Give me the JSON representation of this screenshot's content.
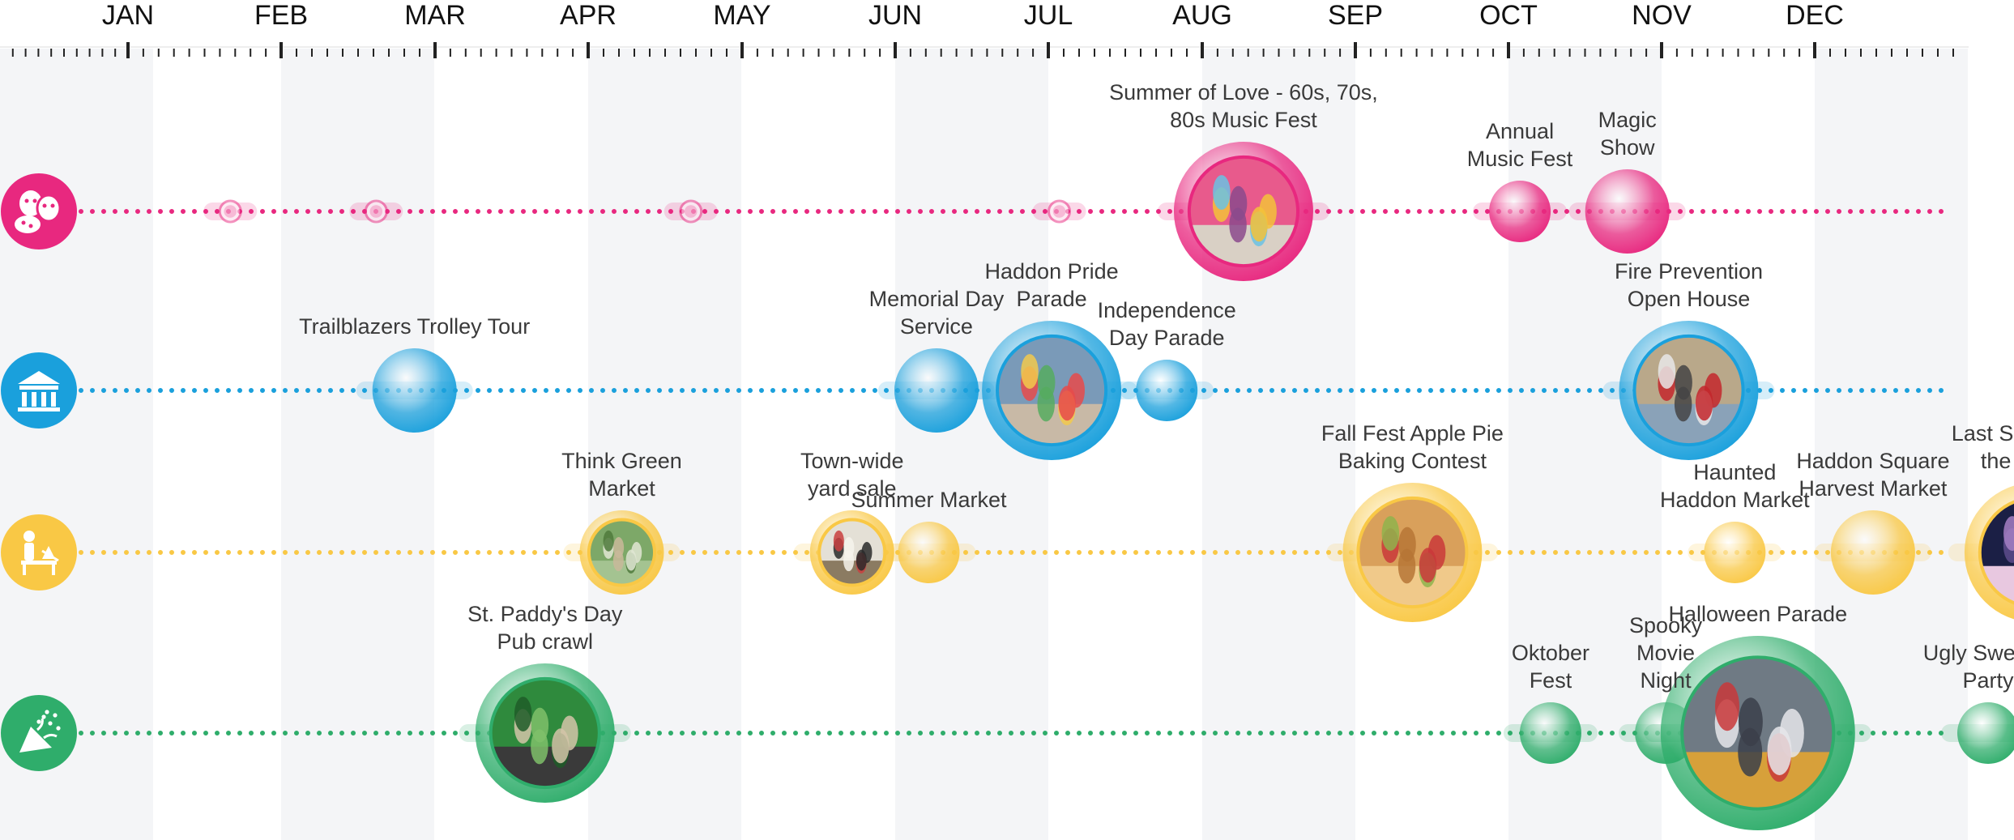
{
  "months": [
    "JAN",
    "FEB",
    "MAR",
    "APR",
    "MAY",
    "JUN",
    "JUL",
    "AUG",
    "SEP",
    "OCT",
    "NOV",
    "DEC"
  ],
  "colors": {
    "arts": "#e8287f",
    "civic": "#1aa0dc",
    "market": "#f9c845",
    "party": "#2fad6b",
    "band": "#f4f5f7",
    "tick": "#222222"
  },
  "rows": [
    {
      "id": "arts",
      "category": "arts-culture",
      "icon": "theater-masks-palette-icon",
      "color": "#e8287f"
    },
    {
      "id": "civic",
      "category": "civic",
      "icon": "government-building-icon",
      "color": "#1aa0dc"
    },
    {
      "id": "market",
      "category": "markets-community",
      "icon": "vendor-market-icon",
      "color": "#f9c845"
    },
    {
      "id": "party",
      "category": "parties-celebrations",
      "icon": "party-popper-icon",
      "color": "#2fad6b"
    }
  ],
  "events": [
    {
      "row": "arts",
      "label": [
        "Summer of Love - 60s, 70s,",
        "80s Music Fest"
      ],
      "month": 8.6,
      "size": "large",
      "photo": "tie-dye-festival-photo"
    },
    {
      "row": "arts",
      "label": [
        "Annual",
        "Music Fest"
      ],
      "month": 10.4,
      "size": "small",
      "photo": ""
    },
    {
      "row": "arts",
      "label": [
        "Magic",
        "Show"
      ],
      "month": 11.1,
      "size": "medium",
      "photo": ""
    },
    {
      "row": "arts",
      "label": [],
      "month": 2.0,
      "size": "dot",
      "photo": ""
    },
    {
      "row": "arts",
      "label": [],
      "month": 2.95,
      "size": "dot",
      "photo": ""
    },
    {
      "row": "arts",
      "label": [],
      "month": 5.0,
      "size": "dot",
      "photo": ""
    },
    {
      "row": "arts",
      "label": [],
      "month": 7.4,
      "size": "dot",
      "photo": ""
    },
    {
      "row": "civic",
      "label": [
        "Trailblazers Trolley Tour"
      ],
      "month": 3.2,
      "size": "medium",
      "photo": ""
    },
    {
      "row": "civic",
      "label": [
        "Memorial Day",
        "Service"
      ],
      "month": 6.6,
      "size": "medium",
      "photo": ""
    },
    {
      "row": "civic",
      "label": [
        "Haddon Pride",
        "Parade"
      ],
      "month": 7.35,
      "size": "large",
      "photo": "pride-parade-photo"
    },
    {
      "row": "civic",
      "label": [
        "Independence",
        "Day Parade"
      ],
      "month": 8.1,
      "size": "small",
      "photo": ""
    },
    {
      "row": "civic",
      "label": [
        "Fire Prevention",
        "Open House"
      ],
      "month": 11.5,
      "size": "large",
      "photo": "fire-truck-photo"
    },
    {
      "row": "market",
      "label": [
        "Think Green",
        "Market"
      ],
      "month": 4.55,
      "size": "medium",
      "photo": "green-market-photo"
    },
    {
      "row": "market",
      "label": [
        "Town-wide",
        "yard sale"
      ],
      "month": 6.05,
      "size": "medium",
      "photo": "garage-sale-photo"
    },
    {
      "row": "market",
      "label": [
        "Summer Market"
      ],
      "month": 6.55,
      "size": "small",
      "photo": ""
    },
    {
      "row": "market",
      "label": [
        "Fall Fest Apple Pie",
        "Baking Contest"
      ],
      "month": 9.7,
      "size": "large",
      "photo": "apple-pie-photo"
    },
    {
      "row": "market",
      "label": [
        "Haunted",
        "Haddon Market"
      ],
      "month": 11.8,
      "size": "small",
      "photo": ""
    },
    {
      "row": "market",
      "label": [
        "Haddon Square",
        "Harvest Market"
      ],
      "month": 12.7,
      "size": "medium",
      "photo": ""
    },
    {
      "row": "market",
      "label": [
        "Last Saturday on",
        "the Square"
      ],
      "month": 13.75,
      "size": "large",
      "photo": "crowd-square-photo"
    },
    {
      "row": "party",
      "label": [
        "St. Paddy's Day",
        "Pub crawl"
      ],
      "month": 4.05,
      "size": "large",
      "photo": "st-paddys-photo"
    },
    {
      "row": "party",
      "label": [
        "Oktober",
        "Fest"
      ],
      "month": 10.6,
      "size": "small",
      "photo": ""
    },
    {
      "row": "party",
      "label": [
        "Spooky",
        "Movie",
        "Night"
      ],
      "month": 11.35,
      "size": "small",
      "photo": ""
    },
    {
      "row": "party",
      "label": [
        "Halloween Parade"
      ],
      "month": 11.95,
      "size": "xlarge",
      "photo": "halloween-parade-photo"
    },
    {
      "row": "party",
      "label": [
        "Ugly Sweater",
        "Party"
      ],
      "month": 13.45,
      "size": "small",
      "photo": ""
    }
  ]
}
